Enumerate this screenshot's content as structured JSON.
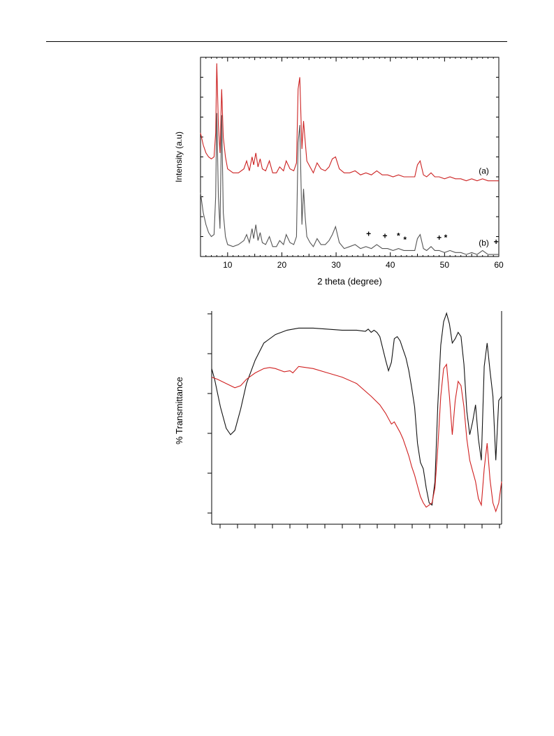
{
  "charts": [
    {
      "type": "line",
      "xlabel": "2 theta (degree)",
      "ylabel": "Intensity (a.u)",
      "xlim": [
        5,
        60
      ],
      "xticks": [
        10,
        20,
        30,
        40,
        50,
        60
      ],
      "ylim": [
        0,
        100
      ],
      "series": [
        {
          "name": "(a)",
          "color": "#cc2222",
          "x": [
            5,
            5.5,
            6,
            6.5,
            7,
            7.5,
            7.8,
            8.0,
            8.3,
            8.6,
            8.9,
            9.2,
            9.6,
            10,
            11,
            12,
            13,
            13.5,
            14,
            14.5,
            14.8,
            15.2,
            15.6,
            16,
            16.4,
            17,
            17.7,
            18.3,
            19,
            19.6,
            20.3,
            20.8,
            21.5,
            22.2,
            22.7,
            23.0,
            23.3,
            23.7,
            24.0,
            24.3,
            24.6,
            25.2,
            25.8,
            26.5,
            27.2,
            28,
            28.7,
            29.3,
            29.9,
            30.6,
            31.5,
            32.5,
            33.5,
            34.5,
            35.5,
            36.5,
            37.5,
            38.5,
            39.5,
            40.5,
            41.5,
            42.5,
            43.5,
            44.5,
            45.0,
            45.5,
            46.1,
            46.7,
            47.5,
            48.2,
            49,
            50,
            51,
            52,
            53,
            54,
            55,
            56,
            57,
            58,
            59,
            60
          ],
          "y": [
            62,
            56,
            52,
            50,
            49,
            50,
            62,
            97,
            66,
            52,
            84,
            60,
            50,
            44,
            42,
            42,
            44,
            48,
            43,
            50,
            46,
            52,
            45,
            49,
            44,
            43,
            48,
            42,
            42,
            45,
            43,
            48,
            44,
            43,
            47,
            84,
            90,
            54,
            68,
            58,
            48,
            45,
            42,
            47,
            44,
            43,
            45,
            49,
            50,
            44,
            42,
            42,
            43,
            41,
            42,
            41,
            43,
            41,
            41,
            40,
            41,
            40,
            40,
            40,
            46,
            48,
            41,
            40,
            42,
            40,
            40,
            39,
            40,
            39,
            39,
            38,
            39,
            38,
            39,
            38,
            38,
            38
          ]
        },
        {
          "name": "(b)",
          "color": "#555555",
          "x": [
            5,
            5.5,
            6,
            6.5,
            7,
            7.5,
            7.8,
            8.0,
            8.3,
            8.6,
            8.9,
            9.2,
            9.6,
            10,
            11,
            12,
            13,
            13.5,
            14,
            14.5,
            14.8,
            15.2,
            15.6,
            16,
            16.4,
            17,
            17.7,
            18.3,
            19,
            19.6,
            20.3,
            20.8,
            21.5,
            22.2,
            22.7,
            23.0,
            23.3,
            23.7,
            24.0,
            24.3,
            24.6,
            25.2,
            25.8,
            26.5,
            27.2,
            28,
            28.7,
            29.3,
            29.9,
            30.6,
            31.5,
            32.5,
            33.5,
            34.5,
            35.5,
            36.5,
            37.5,
            38.5,
            39.5,
            40.5,
            41.5,
            42.5,
            43.5,
            44.5,
            45.0,
            45.5,
            46.1,
            46.7,
            47.5,
            48.2,
            49,
            50,
            51,
            52,
            53,
            54,
            55,
            56,
            57,
            58,
            59,
            60
          ],
          "y": [
            32,
            22,
            16,
            12,
            10,
            11,
            30,
            72,
            30,
            14,
            71,
            22,
            10,
            6,
            5,
            6,
            8,
            11,
            7,
            14,
            9,
            16,
            8,
            12,
            7,
            6,
            10,
            5,
            5,
            8,
            6,
            11,
            7,
            6,
            10,
            57,
            66,
            16,
            34,
            20,
            10,
            7,
            5,
            9,
            6,
            6,
            8,
            11,
            15,
            7,
            4,
            5,
            6,
            4,
            5,
            4,
            6,
            4,
            4,
            3,
            4,
            3,
            3,
            3,
            9,
            11,
            4,
            3,
            5,
            3,
            3,
            2,
            3,
            2,
            2,
            1,
            2,
            1,
            3,
            1,
            1,
            1
          ]
        }
      ],
      "series_labels": [
        "(a)",
        "(b)"
      ],
      "annotations": [
        {
          "text": "+",
          "x": 36,
          "y": 10
        },
        {
          "text": "+",
          "x": 39,
          "y": 9
        },
        {
          "text": "*",
          "x": 41.5,
          "y": 9
        },
        {
          "text": "*",
          "x": 42.7,
          "y": 7
        },
        {
          "text": "+",
          "x": 49,
          "y": 8
        },
        {
          "text": "*",
          "x": 50.2,
          "y": 8
        },
        {
          "text": "+",
          "x": 59.5,
          "y": 6
        }
      ]
    },
    {
      "type": "line",
      "xlabel": "",
      "ylabel": "% Transmittance",
      "xlim": [
        0,
        100
      ],
      "ylim": [
        0,
        100
      ],
      "series": [
        {
          "color": "#111111",
          "x": [
            0,
            1,
            3,
            5,
            6.5,
            8,
            10,
            12,
            15,
            18,
            22,
            26,
            30,
            35,
            40,
            45,
            50,
            53,
            54,
            55,
            56,
            57,
            58,
            60,
            61,
            62,
            63,
            64,
            65,
            66,
            67,
            68,
            69,
            70,
            71,
            72,
            73,
            74,
            75,
            76,
            77,
            78,
            79,
            80,
            81,
            82,
            83,
            84,
            85,
            86,
            87,
            88,
            89,
            90,
            91,
            92,
            93,
            94,
            95,
            96,
            97,
            98,
            99,
            100
          ],
          "y": [
            73,
            68,
            55,
            45,
            42,
            44,
            54,
            66,
            77,
            85,
            89,
            91,
            92,
            92,
            91.5,
            91,
            91,
            90.5,
            91.5,
            90,
            91,
            90,
            88,
            77,
            72,
            76,
            87,
            88,
            86,
            82,
            78,
            72,
            64,
            55,
            38,
            29,
            26,
            17,
            10,
            9,
            20,
            56,
            84,
            95,
            99,
            94,
            85,
            87,
            90,
            88,
            75,
            53,
            42,
            48,
            56,
            40,
            30,
            74,
            85,
            72,
            60,
            30,
            58,
            60
          ]
        },
        {
          "color": "#d02020",
          "x": [
            0,
            2,
            5,
            8,
            10,
            12,
            15,
            18,
            20,
            22,
            24,
            25,
            27,
            28,
            30,
            35,
            40,
            45,
            50,
            55,
            58,
            60,
            62,
            63,
            65,
            66,
            67,
            68,
            69,
            70,
            71,
            72,
            73,
            74,
            75,
            76,
            77,
            78,
            79,
            80,
            81,
            82,
            83,
            84,
            85,
            86,
            87,
            88,
            89,
            90,
            91,
            92,
            93,
            94,
            95,
            96,
            97,
            98,
            99,
            100
          ],
          "y": [
            69,
            68,
            66,
            64,
            65,
            68,
            71,
            73,
            73.5,
            73,
            72,
            71.5,
            72,
            71,
            74,
            73,
            71,
            69,
            66,
            60,
            56,
            52,
            47,
            48,
            43,
            40,
            36,
            32,
            27,
            23,
            18,
            13,
            10,
            8,
            9,
            10,
            17,
            36,
            60,
            73,
            75,
            60,
            42,
            58,
            67,
            65,
            55,
            40,
            30,
            25,
            20,
            12,
            9,
            26,
            38,
            21,
            10,
            6,
            10,
            20
          ]
        }
      ]
    }
  ]
}
